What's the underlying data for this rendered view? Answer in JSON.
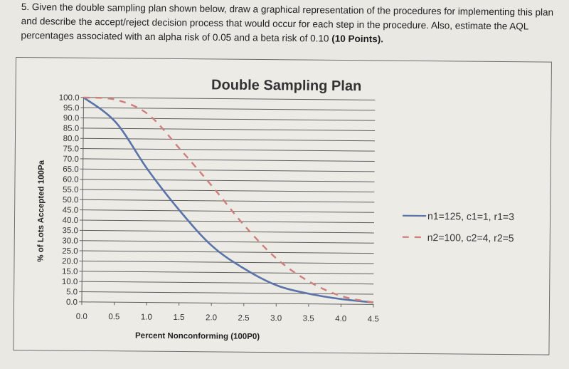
{
  "question": {
    "number": "5.",
    "text": "Given the double sampling plan shown below, draw a graphical representation of the procedures for implementing this plan and describe the accept/reject decision process that would occur for each step in the procedure. Also, estimate the AQL percentages associated with an alpha risk of 0.05 and a beta risk of 0.10",
    "points": "(10 Points)."
  },
  "chart_data": {
    "type": "line",
    "title": "Double Sampling Plan",
    "xlabel": "Percent Nonconforming (100P0)",
    "ylabel": "% of Lots Accepted 100Pa",
    "x": [
      0.0,
      0.5,
      1.0,
      1.5,
      2.0,
      2.5,
      3.0,
      3.5,
      4.0,
      4.5
    ],
    "x_ticks": [
      "0.0",
      "0.5",
      "1.0",
      "1.5",
      "2.0",
      "2.5",
      "3.0",
      "3.5",
      "4.0",
      "4.5"
    ],
    "y_ticks": [
      "0.0",
      "5.0",
      "10.0",
      "15.0",
      "20.0",
      "25.0",
      "30.0",
      "35.0",
      "40.0",
      "45.0",
      "50.0",
      "55.0",
      "60.0",
      "65.0",
      "70.0",
      "75.0",
      "80.0",
      "85.0",
      "90.0",
      "95.0",
      "100.0"
    ],
    "xlim": [
      0,
      4.5
    ],
    "ylim": [
      0,
      100
    ],
    "grid": "horizontal",
    "legend_position": "right",
    "series": [
      {
        "name": "n1=125, c1=1, r1=3",
        "style": "solid",
        "color": "#5a73a8",
        "values": [
          100,
          88,
          65,
          45,
          28,
          17,
          9,
          5,
          2.5,
          1
        ]
      },
      {
        "name": "n2=100, c2=4, r2=5",
        "style": "dashed",
        "color": "#cf7f7a",
        "values": [
          100,
          99,
          92,
          75,
          57,
          38,
          22,
          11,
          4,
          1
        ]
      }
    ]
  }
}
